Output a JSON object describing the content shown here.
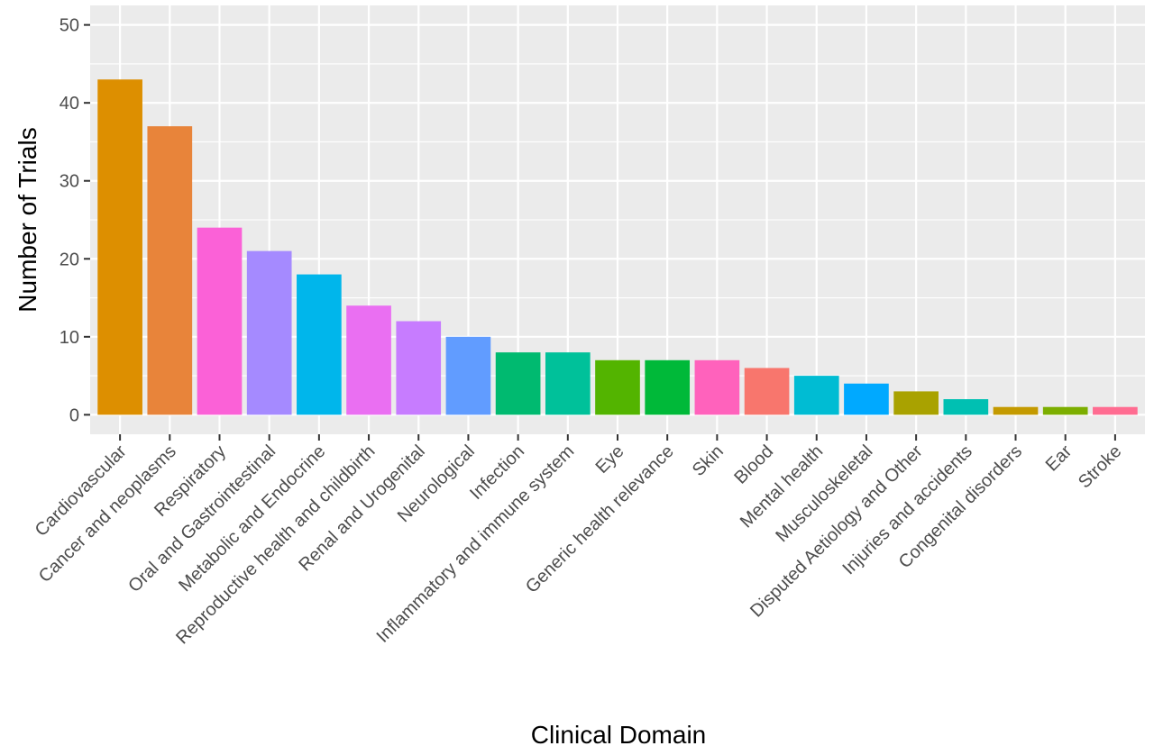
{
  "chart_data": {
    "type": "bar",
    "title": "",
    "xlabel": "Clinical Domain",
    "ylabel": "Number of Trials",
    "ylim": [
      -2.5,
      52.5
    ],
    "yticks": [
      0,
      10,
      20,
      30,
      40,
      50
    ],
    "grid": true,
    "legend": "none",
    "background": "#ebebeb",
    "categories": [
      "Cardiovascular",
      "Cancer and neoplasms",
      "Respiratory",
      "Oral and Gastrointestinal",
      "Metabolic and Endocrine",
      "Reproductive health and childbirth",
      "Renal and Urogenital",
      "Neurological",
      "Infection",
      "Inflammatory and immune system",
      "Eye",
      "Generic health relevance",
      "Skin",
      "Blood",
      "Mental health",
      "Musculoskeletal",
      "Disputed Aetiology and Other",
      "Injuries and accidents",
      "Congenital disorders",
      "Ear",
      "Stroke"
    ],
    "values": [
      43,
      37,
      24,
      21,
      18,
      14,
      12,
      10,
      8,
      8,
      7,
      7,
      7,
      6,
      5,
      4,
      3,
      2,
      1,
      1,
      1
    ],
    "colors": [
      "#dd8f00",
      "#e8843a",
      "#fb61d7",
      "#a58aff",
      "#00b6eb",
      "#ea6ff2",
      "#c77cff",
      "#619cff",
      "#00ba70",
      "#00c19a",
      "#53b400",
      "#00b939",
      "#ff62bc",
      "#f8766d",
      "#00bcd3",
      "#00a9ff",
      "#a9a200",
      "#00c0b2",
      "#c49a00",
      "#7cae00",
      "#ff6c91"
    ]
  }
}
